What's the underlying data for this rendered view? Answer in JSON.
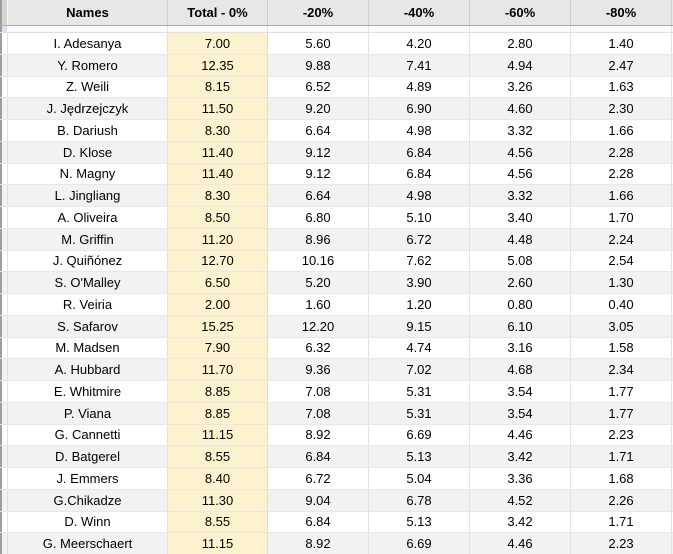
{
  "colors": {
    "header_bg": "#e7e7e7",
    "band_bg": "#f2f2f2",
    "total_col_bg": "#fcf2cd",
    "grid_line": "#e2e2e2",
    "frozen_divider": "#a9a9a9"
  },
  "table": {
    "columns": [
      "Names",
      "Total - 0%",
      "-20%",
      "-40%",
      "-60%",
      "-80%"
    ],
    "rows": [
      {
        "name": "I. Adesanya",
        "values": [
          "7.00",
          "5.60",
          "4.20",
          "2.80",
          "1.40"
        ]
      },
      {
        "name": "Y. Romero",
        "values": [
          "12.35",
          "9.88",
          "7.41",
          "4.94",
          "2.47"
        ]
      },
      {
        "name": "Z. Weili",
        "values": [
          "8.15",
          "6.52",
          "4.89",
          "3.26",
          "1.63"
        ]
      },
      {
        "name": "J. Jędrzejczyk",
        "values": [
          "11.50",
          "9.20",
          "6.90",
          "4.60",
          "2.30"
        ]
      },
      {
        "name": "B. Dariush",
        "values": [
          "8.30",
          "6.64",
          "4.98",
          "3.32",
          "1.66"
        ]
      },
      {
        "name": "D. Klose",
        "values": [
          "11.40",
          "9.12",
          "6.84",
          "4.56",
          "2.28"
        ]
      },
      {
        "name": "N. Magny",
        "values": [
          "11.40",
          "9.12",
          "6.84",
          "4.56",
          "2.28"
        ]
      },
      {
        "name": "L. Jingliang",
        "values": [
          "8.30",
          "6.64",
          "4.98",
          "3.32",
          "1.66"
        ]
      },
      {
        "name": "A. Oliveira",
        "values": [
          "8.50",
          "6.80",
          "5.10",
          "3.40",
          "1.70"
        ]
      },
      {
        "name": "M. Griffin",
        "values": [
          "11.20",
          "8.96",
          "6.72",
          "4.48",
          "2.24"
        ]
      },
      {
        "name": "J. Quiñónez",
        "values": [
          "12.70",
          "10.16",
          "7.62",
          "5.08",
          "2.54"
        ]
      },
      {
        "name": "S. O'Malley",
        "values": [
          "6.50",
          "5.20",
          "3.90",
          "2.60",
          "1.30"
        ]
      },
      {
        "name": "R. Veiria",
        "values": [
          "2.00",
          "1.60",
          "1.20",
          "0.80",
          "0.40"
        ]
      },
      {
        "name": "S. Safarov",
        "values": [
          "15.25",
          "12.20",
          "9.15",
          "6.10",
          "3.05"
        ]
      },
      {
        "name": "M. Madsen",
        "values": [
          "7.90",
          "6.32",
          "4.74",
          "3.16",
          "1.58"
        ]
      },
      {
        "name": "A. Hubbard",
        "values": [
          "11.70",
          "9.36",
          "7.02",
          "4.68",
          "2.34"
        ]
      },
      {
        "name": "E. Whitmire",
        "values": [
          "8.85",
          "7.08",
          "5.31",
          "3.54",
          "1.77"
        ]
      },
      {
        "name": "P. Viana",
        "values": [
          "8.85",
          "7.08",
          "5.31",
          "3.54",
          "1.77"
        ]
      },
      {
        "name": "G. Cannetti",
        "values": [
          "11.15",
          "8.92",
          "6.69",
          "4.46",
          "2.23"
        ]
      },
      {
        "name": "D. Batgerel",
        "values": [
          "8.55",
          "6.84",
          "5.13",
          "3.42",
          "1.71"
        ]
      },
      {
        "name": "J. Emmers",
        "values": [
          "8.40",
          "6.72",
          "5.04",
          "3.36",
          "1.68"
        ]
      },
      {
        "name": "G.Chikadze",
        "values": [
          "11.30",
          "9.04",
          "6.78",
          "4.52",
          "2.26"
        ]
      },
      {
        "name": "D. Winn",
        "values": [
          "8.55",
          "6.84",
          "5.13",
          "3.42",
          "1.71"
        ]
      },
      {
        "name": "G. Meerschaert",
        "values": [
          "11.15",
          "8.92",
          "6.69",
          "4.46",
          "2.23"
        ]
      }
    ]
  }
}
